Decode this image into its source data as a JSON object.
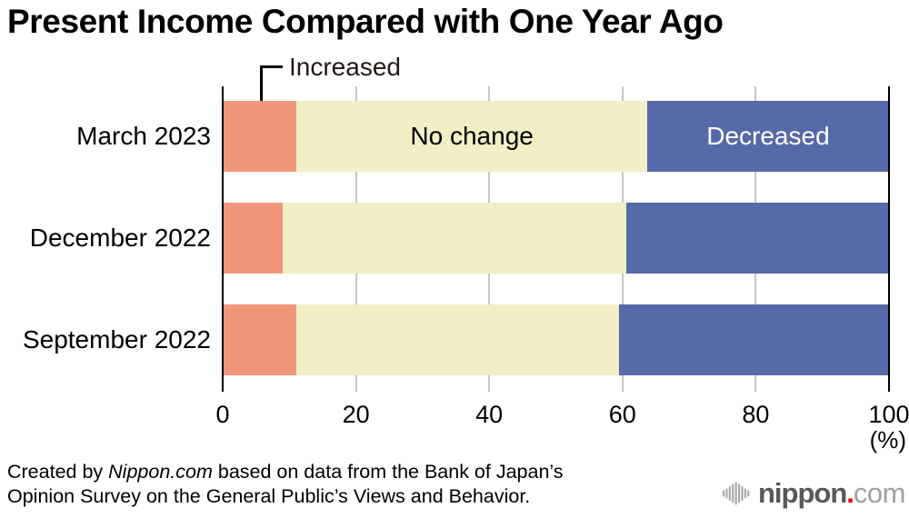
{
  "title": "Present Income Compared with One Year Ago",
  "annotation": {
    "label": "Increased"
  },
  "chart_data": {
    "type": "bar",
    "orientation": "horizontal",
    "stacked": true,
    "unit_label": "(%)",
    "categories": [
      "March 2023",
      "December 2022",
      "September 2022"
    ],
    "series": [
      {
        "name": "Increased",
        "color": "#f0977b",
        "values": [
          11.1,
          9.0,
          11.1
        ],
        "inline_label": false,
        "label_color": "#231815"
      },
      {
        "name": "No change",
        "color": "#f2efc6",
        "values": [
          52.6,
          51.6,
          48.4
        ],
        "inline_label": true,
        "label_color": "#000000"
      },
      {
        "name": "Decreased",
        "color": "#5669a8",
        "values": [
          36.3,
          39.4,
          40.5
        ],
        "inline_label": true,
        "label_color": "#ffffff"
      }
    ],
    "x_ticks": [
      0,
      20,
      40,
      60,
      80,
      100
    ],
    "xlim": [
      0,
      100
    ],
    "grid": true,
    "legend_position": "inline-first-bar"
  },
  "footer": {
    "credit_prefix": "Created by ",
    "credit_source": "Nippon.com",
    "credit_suffix": " based on data from the Bank of Japan’s",
    "credit_line2": "Opinion Survey on the General Public’s Views and Behavior."
  },
  "logo": {
    "wave_icon": "audio-wave-icon",
    "word": "nippon",
    "dot": ".",
    "tld": "com",
    "word_color": "#595757",
    "dot_color": "#e60012",
    "tld_color": "#9fa0a0"
  },
  "colors": {
    "background": "#ffffff",
    "axis_line": "#000000",
    "gridline": "#c6c6c6",
    "title_text": "#000000",
    "annotation_text": "#231815"
  }
}
